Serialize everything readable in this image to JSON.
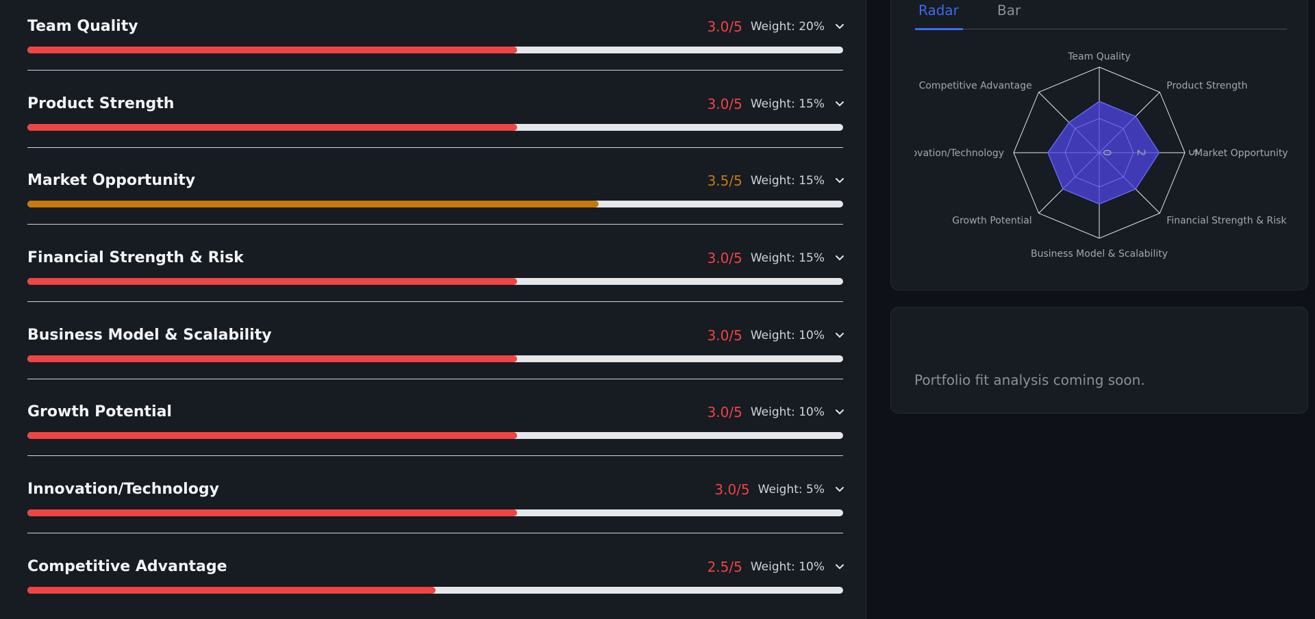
{
  "criteria": {
    "scale_max": 5,
    "rows": [
      {
        "name": "Team Quality",
        "score": 3.0,
        "score_label": "3.0/5",
        "weight": "Weight: 20%",
        "color": "#ef4444"
      },
      {
        "name": "Product Strength",
        "score": 3.0,
        "score_label": "3.0/5",
        "weight": "Weight: 15%",
        "color": "#ef4444"
      },
      {
        "name": "Market Opportunity",
        "score": 3.5,
        "score_label": "3.5/5",
        "weight": "Weight: 15%",
        "color": "#c57a0a"
      },
      {
        "name": "Financial Strength & Risk",
        "score": 3.0,
        "score_label": "3.0/5",
        "weight": "Weight: 15%",
        "color": "#ef4444"
      },
      {
        "name": "Business Model & Scalability",
        "score": 3.0,
        "score_label": "3.0/5",
        "weight": "Weight: 10%",
        "color": "#ef4444"
      },
      {
        "name": "Growth Potential",
        "score": 3.0,
        "score_label": "3.0/5",
        "weight": "Weight: 10%",
        "color": "#ef4444"
      },
      {
        "name": "Innovation/Technology",
        "score": 3.0,
        "score_label": "3.0/5",
        "weight": "Weight: 5%",
        "color": "#ef4444"
      },
      {
        "name": "Competitive Advantage",
        "score": 2.5,
        "score_label": "2.5/5",
        "weight": "Weight: 10%",
        "color": "#ef4444"
      }
    ]
  },
  "tabs": [
    "Radar",
    "Bar"
  ],
  "chart_data": {
    "type": "radar",
    "categories": [
      "Team Quality",
      "Product Strength",
      "Market Opportunity",
      "Financial Strength & Risk",
      "Business Model & Scalability",
      "Growth Potential",
      "Innovation/Technology",
      "Competitive Advantage"
    ],
    "values": [
      3.0,
      3.0,
      3.5,
      3.0,
      3.0,
      3.0,
      3.0,
      2.5
    ],
    "rlim": [
      0,
      5
    ],
    "rticks": [
      0,
      2,
      5
    ],
    "color": "#4f46e5"
  },
  "portfolio": {
    "message": "Portfolio fit analysis coming soon."
  }
}
